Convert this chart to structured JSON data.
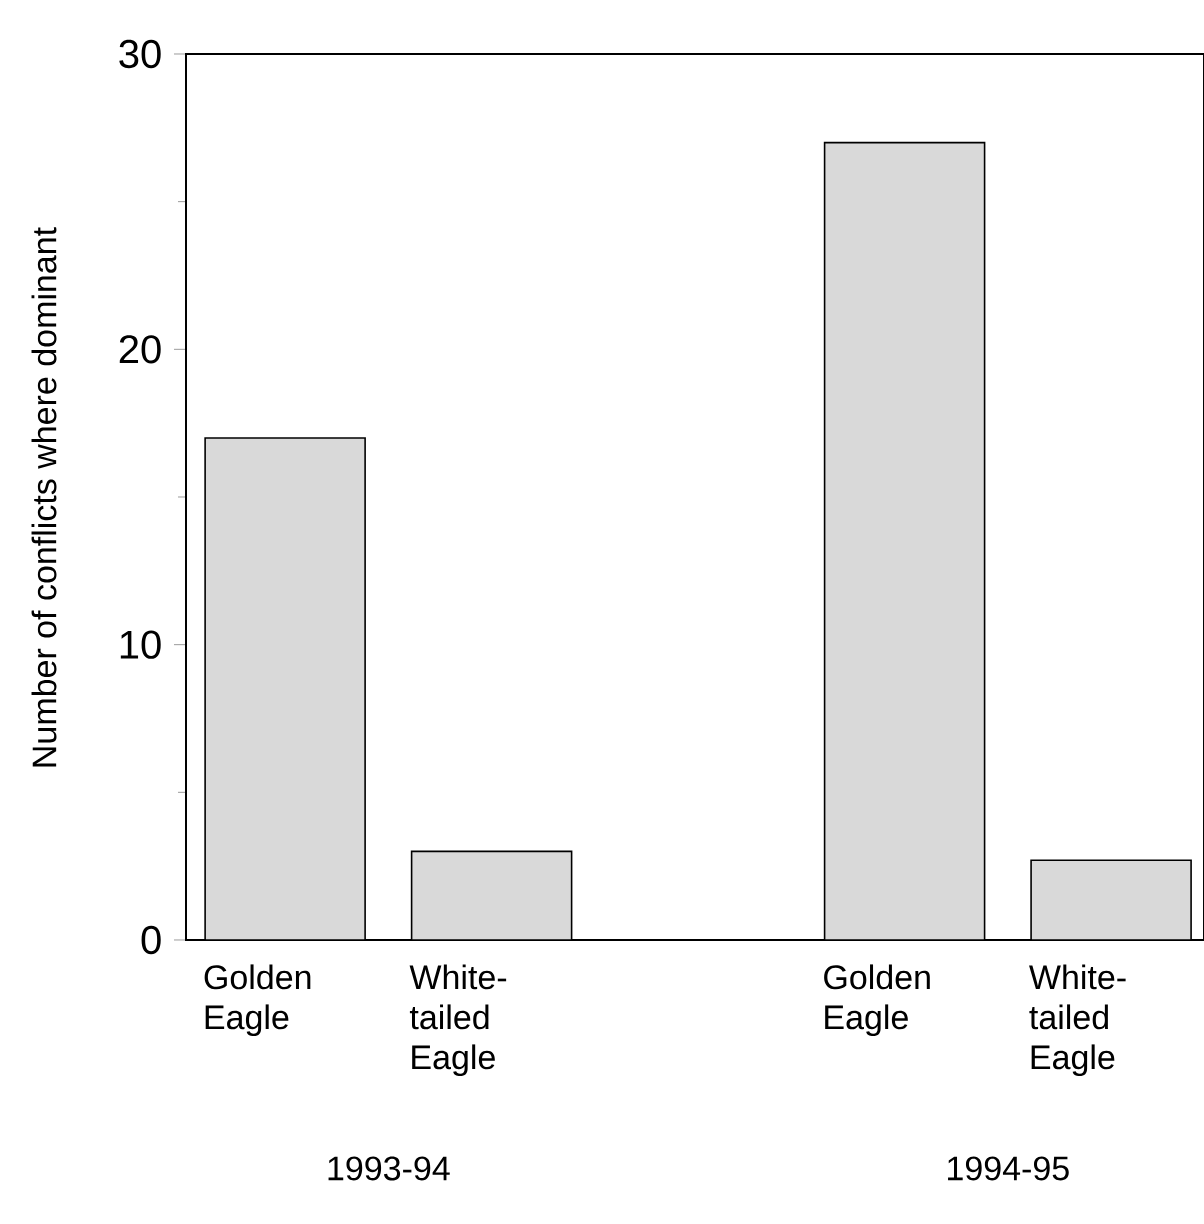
{
  "chart_data": {
    "type": "bar",
    "ylabel": "Number of conflicts where dominant",
    "categories": [
      "Golden Eagle",
      "White-tailed Eagle",
      null,
      "Golden Eagle",
      "White-tailed Eagle"
    ],
    "values": [
      17,
      3,
      null,
      27,
      2.7
    ],
    "color": "#d9d9d9",
    "ylim": [
      0,
      30
    ],
    "yticks": [
      0,
      {
        "value": 5,
        "label": null
      },
      10,
      {
        "value": 15,
        "label": null
      },
      20,
      {
        "value": 25,
        "label": null
      },
      30
    ],
    "annotations": [
      "1993-94",
      "1994-95"
    ],
    "grid": false
  }
}
